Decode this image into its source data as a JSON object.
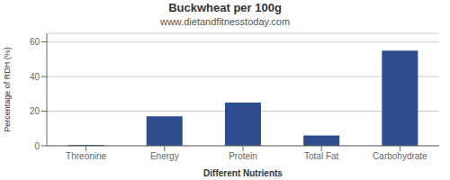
{
  "chart_data": {
    "type": "bar",
    "title": "Buckwheat per 100g",
    "subtitle": "www.dietandfitnesstoday.com",
    "xlabel": "Different Nutrients",
    "ylabel": "Percentage of RDH (%)",
    "categories": [
      "Threonine",
      "Energy",
      "Protein",
      "Total Fat",
      "Carbohydrate"
    ],
    "values": [
      0.5,
      17,
      25,
      6,
      55
    ],
    "color": "#2e4d8e",
    "ylim": [
      0,
      65
    ],
    "yticks": [
      0,
      20,
      40,
      60
    ],
    "grid": true
  }
}
